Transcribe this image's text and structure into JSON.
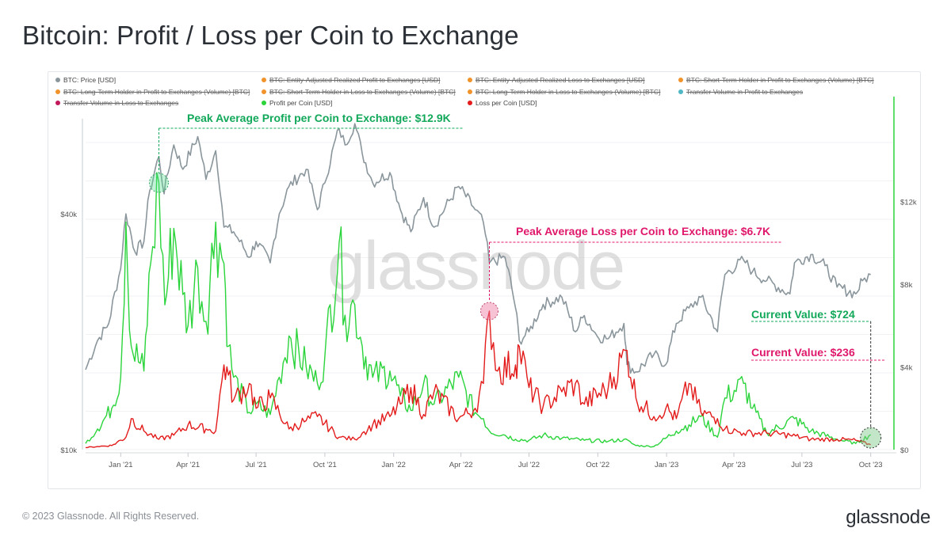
{
  "title": "Bitcoin: Profit / Loss per Coin to Exchange",
  "footer": "© 2023 Glassnode. All Rights Reserved.",
  "brand": "glassnode",
  "watermark": "glassnode",
  "legend": [
    {
      "label": "BTC: Price [USD]",
      "color": "#8a969c",
      "active": true
    },
    {
      "label": "BTC: Entity-Adjusted Realized Profit to Exchanges [USD]",
      "color": "#f0932b",
      "active": false
    },
    {
      "label": "BTC: Entity-Adjusted Realized Loss to Exchanges [USD]",
      "color": "#f0932b",
      "active": false
    },
    {
      "label": "BTC: Short-Term Holder in Profit to Exchanges (Volume) [BTC]",
      "color": "#f0932b",
      "active": false
    },
    {
      "label": "BTC: Long-Term Holder in Profit to Exchanges (Volume) [BTC]",
      "color": "#f0932b",
      "active": false
    },
    {
      "label": "BTC: Short-Term Holder in Loss to Exchanges (Volume) [BTC]",
      "color": "#f0932b",
      "active": false
    },
    {
      "label": "BTC: Long-Term Holder in Loss to Exchanges (Volume) [BTC]",
      "color": "#f0932b",
      "active": false
    },
    {
      "label": "Transfer Volume in Profit to Exchanges",
      "color": "#4fb8c4",
      "active": false
    },
    {
      "label": "Transfer Volume in Loss to Exchanges",
      "color": "#c2185b",
      "active": false
    },
    {
      "label": "Profit per Coin [USD]",
      "color": "#2bd43b",
      "active": true
    },
    {
      "label": "Loss per Coin [USD]",
      "color": "#e31b1b",
      "active": true
    }
  ],
  "annotations": {
    "peak_profit": "Peak Average Profit per Coin to Exchange: $12.9K",
    "peak_loss": "Peak Average Loss per Coin to Exchange: $6.7K",
    "current_profit": "Current Value: $724",
    "current_loss": "Current Value: $236"
  },
  "chart_data": {
    "type": "line",
    "x_tick_labels": [
      "Jan '21",
      "Apr '21",
      "Jul '21",
      "Oct '21",
      "Jan '22",
      "Apr '22",
      "Jul '22",
      "Oct '22",
      "Jan '23",
      "Apr '23",
      "Jul '23",
      "Oct '23"
    ],
    "x_range": [
      "2020-11-15",
      "2023-10-31"
    ],
    "y_left": {
      "scale": "log",
      "range": [
        10000,
        70000
      ],
      "tick_labels": [
        "$10k",
        "$40k"
      ],
      "tick_values": [
        10000,
        40000
      ]
    },
    "y_right": {
      "scale": "linear",
      "range": [
        0,
        16000
      ],
      "tick_labels": [
        "$0",
        "$4k",
        "$8k",
        "$12k"
      ],
      "tick_values": [
        0,
        4000,
        8000,
        12000
      ]
    },
    "grid": true,
    "legend_position": "top",
    "series": [
      {
        "name": "BTC: Price [USD]",
        "axis": "left",
        "color": "#8a969c",
        "points": [
          [
            "2020-11-15",
            16000
          ],
          [
            "2020-12-01",
            19000
          ],
          [
            "2020-12-16",
            21000
          ],
          [
            "2021-01-01",
            29000
          ],
          [
            "2021-01-08",
            40000
          ],
          [
            "2021-01-20",
            32000
          ],
          [
            "2021-02-01",
            34000
          ],
          [
            "2021-02-09",
            46000
          ],
          [
            "2021-02-21",
            56000
          ],
          [
            "2021-02-28",
            45000
          ],
          [
            "2021-03-13",
            60000
          ],
          [
            "2021-03-25",
            52000
          ],
          [
            "2021-04-14",
            63000
          ],
          [
            "2021-04-25",
            49000
          ],
          [
            "2021-05-08",
            58000
          ],
          [
            "2021-05-19",
            37000
          ],
          [
            "2021-06-01",
            36000
          ],
          [
            "2021-06-22",
            31000
          ],
          [
            "2021-07-01",
            34000
          ],
          [
            "2021-07-20",
            30000
          ],
          [
            "2021-08-01",
            40000
          ],
          [
            "2021-08-14",
            47000
          ],
          [
            "2021-09-06",
            52000
          ],
          [
            "2021-09-21",
            41000
          ],
          [
            "2021-10-01",
            48000
          ],
          [
            "2021-10-20",
            66000
          ],
          [
            "2021-10-28",
            60000
          ],
          [
            "2021-11-10",
            68000
          ],
          [
            "2021-11-20",
            57000
          ],
          [
            "2021-12-04",
            48000
          ],
          [
            "2021-12-27",
            51000
          ],
          [
            "2022-01-10",
            41000
          ],
          [
            "2022-01-24",
            36000
          ],
          [
            "2022-02-10",
            44000
          ],
          [
            "2022-02-24",
            37000
          ],
          [
            "2022-03-29",
            47000
          ],
          [
            "2022-04-20",
            41000
          ],
          [
            "2022-05-01",
            38000
          ],
          [
            "2022-05-09",
            30000
          ],
          [
            "2022-05-30",
            31000
          ],
          [
            "2022-06-13",
            23000
          ],
          [
            "2022-06-18",
            19000
          ],
          [
            "2022-07-01",
            20000
          ],
          [
            "2022-07-20",
            23500
          ],
          [
            "2022-08-14",
            24500
          ],
          [
            "2022-09-01",
            20000
          ],
          [
            "2022-09-13",
            22000
          ],
          [
            "2022-09-30",
            19500
          ],
          [
            "2022-10-15",
            19200
          ],
          [
            "2022-11-05",
            21000
          ],
          [
            "2022-11-09",
            16500
          ],
          [
            "2022-11-21",
            15800
          ],
          [
            "2022-12-15",
            17500
          ],
          [
            "2022-12-31",
            16500
          ],
          [
            "2023-01-14",
            21000
          ],
          [
            "2023-01-31",
            23000
          ],
          [
            "2023-02-16",
            24500
          ],
          [
            "2023-03-10",
            20000
          ],
          [
            "2023-03-20",
            28000
          ],
          [
            "2023-04-14",
            30500
          ],
          [
            "2023-04-26",
            28500
          ],
          [
            "2023-05-15",
            27000
          ],
          [
            "2023-06-15",
            25000
          ],
          [
            "2023-06-21",
            30000
          ],
          [
            "2023-07-13",
            31500
          ],
          [
            "2023-08-01",
            29500
          ],
          [
            "2023-08-17",
            26000
          ],
          [
            "2023-09-11",
            25000
          ],
          [
            "2023-09-20",
            27000
          ],
          [
            "2023-10-01",
            28000
          ]
        ]
      },
      {
        "name": "Profit per Coin [USD]",
        "axis": "right",
        "color": "#2bd43b",
        "points": [
          [
            "2020-11-15",
            300
          ],
          [
            "2020-12-01",
            1000
          ],
          [
            "2020-12-20",
            2000
          ],
          [
            "2021-01-01",
            3500
          ],
          [
            "2021-01-08",
            11000
          ],
          [
            "2021-01-15",
            5000
          ],
          [
            "2021-02-01",
            3800
          ],
          [
            "2021-02-10",
            9000
          ],
          [
            "2021-02-21",
            12900
          ],
          [
            "2021-03-01",
            7000
          ],
          [
            "2021-03-13",
            10700
          ],
          [
            "2021-03-25",
            7500
          ],
          [
            "2021-04-01",
            6000
          ],
          [
            "2021-04-14",
            8800
          ],
          [
            "2021-04-25",
            6200
          ],
          [
            "2021-05-08",
            11000
          ],
          [
            "2021-05-19",
            9000
          ],
          [
            "2021-05-25",
            5000
          ],
          [
            "2021-06-01",
            3500
          ],
          [
            "2021-06-22",
            1800
          ],
          [
            "2021-07-01",
            2200
          ],
          [
            "2021-07-20",
            1700
          ],
          [
            "2021-08-01",
            3500
          ],
          [
            "2021-08-14",
            5500
          ],
          [
            "2021-09-06",
            4000
          ],
          [
            "2021-09-21",
            3200
          ],
          [
            "2021-10-01",
            4500
          ],
          [
            "2021-10-20",
            10000
          ],
          [
            "2021-10-28",
            6500
          ],
          [
            "2021-11-10",
            7000
          ],
          [
            "2021-11-20",
            5000
          ],
          [
            "2021-12-04",
            3500
          ],
          [
            "2021-12-27",
            3800
          ],
          [
            "2022-01-10",
            2600
          ],
          [
            "2022-01-24",
            1900
          ],
          [
            "2022-02-10",
            3200
          ],
          [
            "2022-02-24",
            2200
          ],
          [
            "2022-03-29",
            3500
          ],
          [
            "2022-04-20",
            1800
          ],
          [
            "2022-05-01",
            1500
          ],
          [
            "2022-05-09",
            900
          ],
          [
            "2022-05-30",
            700
          ],
          [
            "2022-06-13",
            500
          ],
          [
            "2022-07-01",
            450
          ],
          [
            "2022-07-20",
            700
          ],
          [
            "2022-08-14",
            550
          ],
          [
            "2022-09-13",
            450
          ],
          [
            "2022-10-15",
            400
          ],
          [
            "2022-11-05",
            500
          ],
          [
            "2022-11-21",
            200
          ],
          [
            "2022-12-15",
            150
          ],
          [
            "2023-01-14",
            900
          ],
          [
            "2023-01-31",
            1200
          ],
          [
            "2023-02-16",
            1600
          ],
          [
            "2023-03-10",
            600
          ],
          [
            "2023-03-20",
            2500
          ],
          [
            "2023-04-14",
            3200
          ],
          [
            "2023-04-26",
            2000
          ],
          [
            "2023-05-15",
            800
          ],
          [
            "2023-06-21",
            1500
          ],
          [
            "2023-07-13",
            900
          ],
          [
            "2023-08-17",
            500
          ],
          [
            "2023-09-11",
            300
          ],
          [
            "2023-10-01",
            724
          ]
        ]
      },
      {
        "name": "Loss per Coin [USD]",
        "axis": "right",
        "color": "#e31b1b",
        "points": [
          [
            "2020-11-15",
            100
          ],
          [
            "2020-12-01",
            150
          ],
          [
            "2020-12-20",
            200
          ],
          [
            "2021-01-08",
            600
          ],
          [
            "2021-01-15",
            1500
          ],
          [
            "2021-02-01",
            900
          ],
          [
            "2021-02-21",
            500
          ],
          [
            "2021-03-13",
            700
          ],
          [
            "2021-04-01",
            1200
          ],
          [
            "2021-04-25",
            1000
          ],
          [
            "2021-05-08",
            900
          ],
          [
            "2021-05-19",
            4100
          ],
          [
            "2021-05-25",
            3600
          ],
          [
            "2021-06-01",
            2400
          ],
          [
            "2021-06-22",
            3200
          ],
          [
            "2021-07-01",
            2000
          ],
          [
            "2021-07-20",
            2500
          ],
          [
            "2021-08-14",
            1000
          ],
          [
            "2021-09-06",
            1400
          ],
          [
            "2021-09-21",
            1600
          ],
          [
            "2021-10-20",
            600
          ],
          [
            "2021-11-10",
            500
          ],
          [
            "2021-11-20",
            800
          ],
          [
            "2021-12-04",
            1200
          ],
          [
            "2021-12-27",
            1600
          ],
          [
            "2022-01-10",
            2200
          ],
          [
            "2022-01-24",
            3000
          ],
          [
            "2022-02-10",
            1700
          ],
          [
            "2022-02-24",
            2800
          ],
          [
            "2022-03-29",
            1500
          ],
          [
            "2022-04-20",
            2000
          ],
          [
            "2022-05-01",
            3200
          ],
          [
            "2022-05-09",
            6700
          ],
          [
            "2022-05-20",
            3800
          ],
          [
            "2022-06-13",
            4100
          ],
          [
            "2022-06-18",
            5000
          ],
          [
            "2022-07-01",
            3000
          ],
          [
            "2022-07-20",
            2100
          ],
          [
            "2022-08-14",
            2800
          ],
          [
            "2022-09-01",
            3200
          ],
          [
            "2022-09-13",
            2200
          ],
          [
            "2022-10-15",
            3000
          ],
          [
            "2022-11-09",
            4800
          ],
          [
            "2022-11-21",
            2500
          ],
          [
            "2022-12-15",
            1600
          ],
          [
            "2022-12-31",
            2000
          ],
          [
            "2023-01-14",
            1500
          ],
          [
            "2023-01-31",
            3200
          ],
          [
            "2023-02-16",
            1800
          ],
          [
            "2023-03-10",
            1500
          ],
          [
            "2023-03-20",
            1000
          ],
          [
            "2023-04-14",
            800
          ],
          [
            "2023-05-15",
            800
          ],
          [
            "2023-06-15",
            700
          ],
          [
            "2023-07-13",
            500
          ],
          [
            "2023-08-17",
            500
          ],
          [
            "2023-09-11",
            450
          ],
          [
            "2023-10-01",
            236
          ]
        ]
      }
    ]
  }
}
